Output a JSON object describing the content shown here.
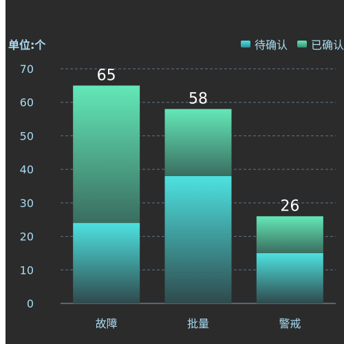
{
  "chart_data": {
    "type": "bar",
    "stacked": true,
    "unit_label": "单位:个",
    "categories": [
      "故障",
      "批量",
      "警戒"
    ],
    "series": [
      {
        "name": "待确认",
        "values": [
          24,
          38,
          15
        ],
        "color_top": "#4de2e0",
        "color_bottom": "#2f4a4d"
      },
      {
        "name": "已确认",
        "values": [
          41,
          20,
          11
        ],
        "color_top": "#63e8b8",
        "color_bottom": "#3a6d5f"
      }
    ],
    "totals": [
      65,
      58,
      26
    ],
    "y_ticks": [
      0,
      10,
      20,
      30,
      40,
      50,
      60,
      70
    ],
    "ylim": [
      0,
      70
    ],
    "grid": true,
    "legend_position": "top-right"
  }
}
